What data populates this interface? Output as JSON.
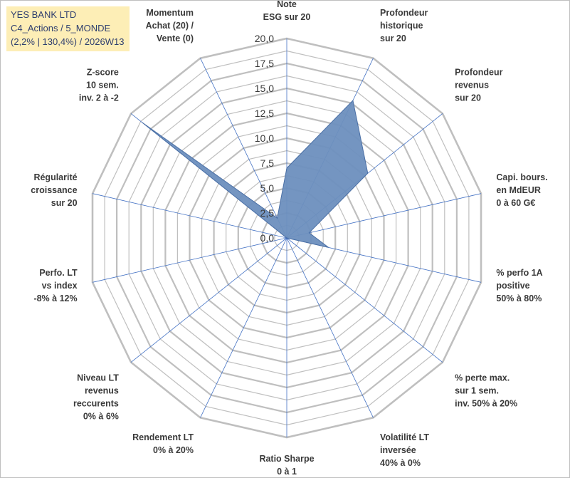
{
  "title_box": {
    "line1": "YES BANK LTD",
    "line2": "C4_Actions / 5_MONDE",
    "line3": "(2,2% | 130,4%) / 2026W13"
  },
  "chart_data": {
    "type": "radar",
    "title": "YES BANK LTD",
    "rmin": 0,
    "rmax": 20,
    "ticks": [
      {
        "value": 0,
        "label": "0,0"
      },
      {
        "value": 2.5,
        "label": "2,5"
      },
      {
        "value": 5,
        "label": "5,0"
      },
      {
        "value": 7.5,
        "label": "7,5"
      },
      {
        "value": 10,
        "label": "10,0"
      },
      {
        "value": 12.5,
        "label": "12,5"
      },
      {
        "value": 15,
        "label": "15,0"
      },
      {
        "value": 17.5,
        "label": "17,5"
      },
      {
        "value": 20,
        "label": "20,0"
      }
    ],
    "axes": [
      {
        "lines": [
          "Note",
          "ESG sur 20"
        ]
      },
      {
        "lines": [
          "Profondeur",
          "historique",
          "sur 20"
        ]
      },
      {
        "lines": [
          "Profondeur",
          "revenus",
          "sur 20"
        ]
      },
      {
        "lines": [
          "Capi. bours.",
          "en MdEUR",
          "0 à 60 G€"
        ]
      },
      {
        "lines": [
          "% perfo 1A",
          "positive",
          "50% à 80%"
        ]
      },
      {
        "lines": [
          "% perte max.",
          "sur 1 sem.",
          "inv. 50% à 20%"
        ]
      },
      {
        "lines": [
          "Volatilité LT",
          "inversée",
          "40% à 0%"
        ]
      },
      {
        "lines": [
          "Ratio Sharpe",
          "0 à 1"
        ]
      },
      {
        "lines": [
          "Rendement LT",
          "0% à 20%"
        ]
      },
      {
        "lines": [
          "Niveau LT",
          "revenus",
          "reccurents",
          "0% à 6%"
        ]
      },
      {
        "lines": [
          "Perfo. LT",
          "vs index",
          "-8% à 12%"
        ]
      },
      {
        "lines": [
          "Régularité",
          "croissance",
          "sur 20"
        ]
      },
      {
        "lines": [
          "Z-score",
          "10 sem.",
          "inv. 2 à -2"
        ]
      },
      {
        "lines": [
          "Momentum",
          "Achat (20) /",
          "Vente (0)"
        ]
      }
    ],
    "series": [
      {
        "values": [
          7.0,
          15.3,
          10.4,
          2.3,
          4.3,
          0,
          0,
          0,
          0,
          0,
          0,
          0,
          18.6,
          2.2
        ],
        "color": "#6d8fbe"
      }
    ],
    "colors": {
      "grid": "#bfbfbf",
      "spoke": "#4472c4",
      "fill": "#6d8fbe",
      "stroke": "#4a6fa5"
    },
    "grid": true,
    "legend": "none"
  }
}
